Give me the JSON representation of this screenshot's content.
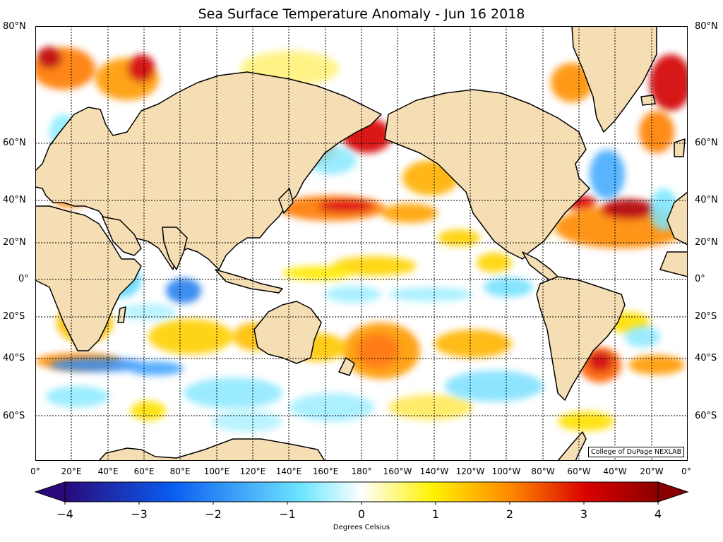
{
  "title": "Sea Surface Temperature Anomaly - Jun 16 2018",
  "credit": "College of DuPage NEXLAB",
  "lat_labels": [
    "80°N",
    "60°N",
    "40°N",
    "20°N",
    "0°",
    "20°S",
    "40°S",
    "60°S"
  ],
  "lon_labels": [
    "0°",
    "20°E",
    "40°E",
    "60°E",
    "80°E",
    "100°E",
    "120°E",
    "140°E",
    "160°E",
    "180°",
    "160°W",
    "140°W",
    "120°W",
    "100°W",
    "80°W",
    "60°W",
    "40°W",
    "20°W",
    "0°"
  ],
  "colorbar": {
    "ticks": [
      "−4",
      "−3",
      "−2",
      "−1",
      "0",
      "1",
      "2",
      "3",
      "4"
    ],
    "label": "Degrees Celsius",
    "range": [
      -4,
      4
    ],
    "colors": {
      "min": "#2a0a7a",
      "blue": "#0a5cf0",
      "cyan": "#6ee6ff",
      "zero": "#ffffff",
      "yellow": "#fff200",
      "orange": "#ff8a00",
      "red": "#d80000",
      "max": "#8a0000"
    }
  },
  "colors": {
    "land": "#f5deb3",
    "coast": "#000000",
    "grid": "#000000"
  }
}
